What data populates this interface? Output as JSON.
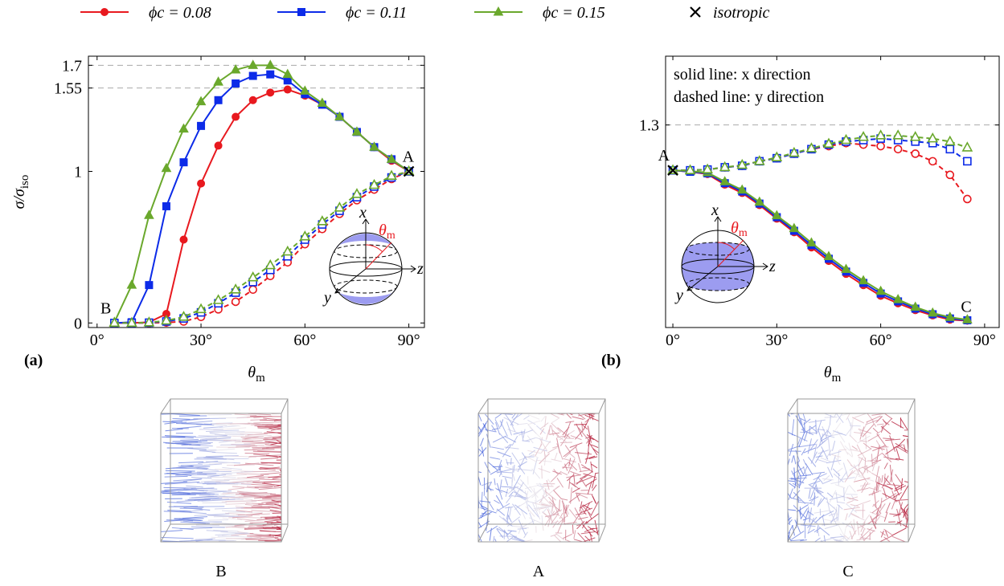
{
  "chart_data": [
    {
      "type": "line",
      "panel": "(a)",
      "x_label": {
        "main": "θ",
        "sub": "m"
      },
      "y_label": {
        "main": "σ/σ",
        "sub": "iso"
      },
      "x": [
        5,
        10,
        15,
        20,
        25,
        30,
        35,
        40,
        45,
        50,
        55,
        60,
        65,
        70,
        75,
        80,
        85,
        90
      ],
      "xlim": [
        -2.5,
        94.5
      ],
      "ylim": [
        -0.03,
        1.76
      ],
      "xticks": [
        {
          "value": 0,
          "label": "0°"
        },
        {
          "value": 30,
          "label": "30°"
        },
        {
          "value": 60,
          "label": "60°"
        },
        {
          "value": 90,
          "label": "90°"
        }
      ],
      "yticks": [
        0,
        1,
        1.55,
        1.7
      ],
      "reference_lines": [
        1.55,
        1.7
      ],
      "annotations": [
        {
          "text": "B",
          "x": 5,
          "y": 0
        },
        {
          "text": "A",
          "x": 90,
          "y": 1
        }
      ],
      "inset_labels": {
        "x": "x",
        "z": "z",
        "y": "y",
        "theta": "θ",
        "theta_sub": "m"
      },
      "series": [
        {
          "name": "ϕc = 0.08",
          "color": "#e8191f",
          "marker": "circle",
          "style": "solid",
          "values": [
            0,
            0,
            0.005,
            0.06,
            0.55,
            0.92,
            1.17,
            1.36,
            1.47,
            1.52,
            1.54,
            1.5,
            1.44,
            1.36,
            1.26,
            1.16,
            1.07,
            1.0
          ]
        },
        {
          "name": "ϕc = 0.11",
          "color": "#0c2be8",
          "marker": "square",
          "style": "solid",
          "values": [
            0,
            0.005,
            0.25,
            0.77,
            1.06,
            1.3,
            1.47,
            1.58,
            1.63,
            1.64,
            1.6,
            1.51,
            1.44,
            1.36,
            1.26,
            1.16,
            1.08,
            1.0
          ]
        },
        {
          "name": "ϕc = 0.15",
          "color": "#6aa82c",
          "marker": "triangle",
          "style": "solid",
          "values": [
            0.005,
            0.25,
            0.71,
            1.02,
            1.28,
            1.46,
            1.59,
            1.67,
            1.7,
            1.7,
            1.64,
            1.53,
            1.45,
            1.36,
            1.26,
            1.16,
            1.08,
            1.0
          ]
        },
        {
          "color": "#e8191f",
          "marker": "circle",
          "style": "dashed",
          "values": [
            0,
            0,
            0,
            0.003,
            0.01,
            0.04,
            0.09,
            0.14,
            0.22,
            0.31,
            0.4,
            0.52,
            0.62,
            0.72,
            0.81,
            0.88,
            0.95,
            1.0
          ]
        },
        {
          "color": "#0c2be8",
          "marker": "square",
          "style": "dashed",
          "values": [
            0,
            0,
            0.002,
            0.01,
            0.03,
            0.07,
            0.13,
            0.2,
            0.27,
            0.35,
            0.44,
            0.55,
            0.65,
            0.74,
            0.83,
            0.9,
            0.96,
            1.0
          ]
        },
        {
          "color": "#6aa82c",
          "marker": "triangle",
          "style": "dashed",
          "values": [
            0,
            0,
            0.003,
            0.015,
            0.04,
            0.09,
            0.15,
            0.22,
            0.3,
            0.38,
            0.47,
            0.57,
            0.67,
            0.76,
            0.85,
            0.91,
            0.97,
            1.0
          ]
        },
        {
          "name": "isotropic",
          "color": "#000000",
          "marker": "cross",
          "style": "none",
          "x": [
            90
          ],
          "values": [
            1
          ]
        }
      ]
    },
    {
      "type": "line",
      "panel": "(b)",
      "x_label": {
        "main": "θ",
        "sub": "m"
      },
      "x": [
        0,
        5,
        10,
        15,
        20,
        25,
        30,
        35,
        40,
        45,
        50,
        55,
        60,
        65,
        70,
        75,
        80,
        85
      ],
      "xlim": [
        -2.1,
        94.2
      ],
      "ylim": [
        -0.04,
        1.755
      ],
      "xticks": [
        {
          "value": 0,
          "label": "0°"
        },
        {
          "value": 30,
          "label": "30°"
        },
        {
          "value": 60,
          "label": "60°"
        },
        {
          "value": 90,
          "label": "90°"
        }
      ],
      "yticks": [
        1.3
      ],
      "reference_lines": [
        1.3
      ],
      "notes": [
        "solid line: x direction",
        "dashed line: y direction"
      ],
      "annotations": [
        {
          "text": "A",
          "x": 0,
          "y": 1
        },
        {
          "text": "C",
          "x": 85,
          "y": 0
        }
      ],
      "inset_labels": {
        "x": "x",
        "z": "z",
        "y": "y",
        "theta": "θ",
        "theta_sub": "m"
      },
      "series": [
        {
          "color": "#e8191f",
          "marker": "circle",
          "style": "solid",
          "values": [
            1.0,
            0.99,
            0.975,
            0.905,
            0.85,
            0.77,
            0.68,
            0.59,
            0.49,
            0.4,
            0.315,
            0.24,
            0.17,
            0.12,
            0.075,
            0.04,
            0.012,
            0.005
          ]
        },
        {
          "color": "#0c2be8",
          "marker": "square",
          "style": "solid",
          "values": [
            1.0,
            0.99,
            0.98,
            0.915,
            0.86,
            0.78,
            0.69,
            0.6,
            0.505,
            0.415,
            0.33,
            0.255,
            0.185,
            0.133,
            0.085,
            0.048,
            0.02,
            0.008
          ]
        },
        {
          "color": "#6aa82c",
          "marker": "triangle",
          "style": "solid",
          "values": [
            1.0,
            0.995,
            0.985,
            0.925,
            0.87,
            0.79,
            0.7,
            0.615,
            0.52,
            0.43,
            0.345,
            0.27,
            0.2,
            0.145,
            0.095,
            0.056,
            0.028,
            0.012
          ]
        },
        {
          "color": "#e8191f",
          "marker": "circle",
          "style": "dashed",
          "values": [
            1.0,
            1.0,
            1.005,
            1.02,
            1.03,
            1.06,
            1.08,
            1.11,
            1.14,
            1.16,
            1.18,
            1.17,
            1.16,
            1.14,
            1.11,
            1.06,
            0.97,
            0.81
          ]
        },
        {
          "color": "#0c2be8",
          "marker": "square",
          "style": "dashed",
          "values": [
            1.0,
            1.0,
            1.005,
            1.02,
            1.03,
            1.06,
            1.08,
            1.11,
            1.14,
            1.17,
            1.19,
            1.2,
            1.21,
            1.2,
            1.19,
            1.18,
            1.14,
            1.06
          ]
        },
        {
          "color": "#6aa82c",
          "marker": "triangle",
          "style": "dashed",
          "values": [
            1.0,
            1.0,
            1.005,
            1.02,
            1.035,
            1.06,
            1.085,
            1.115,
            1.145,
            1.175,
            1.2,
            1.22,
            1.23,
            1.23,
            1.22,
            1.21,
            1.19,
            1.15
          ]
        },
        {
          "color": "#000000",
          "marker": "cross",
          "style": "none",
          "x": [
            0
          ],
          "values": [
            1
          ]
        }
      ]
    }
  ],
  "renderings": [
    {
      "label": "B",
      "kind": "aligned"
    },
    {
      "label": "A",
      "kind": "isotropic"
    },
    {
      "label": "C",
      "kind": "isotropic"
    }
  ]
}
